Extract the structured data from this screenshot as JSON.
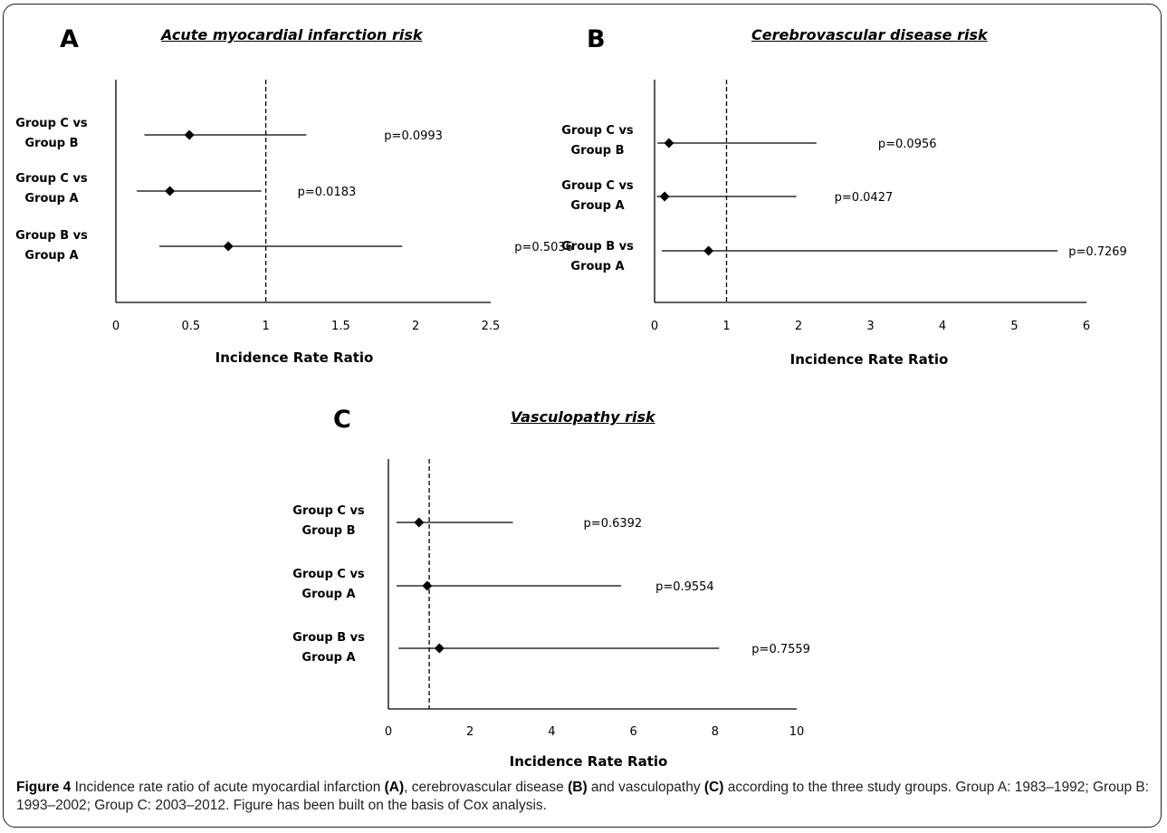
{
  "chart_data": [
    {
      "type": "forest",
      "panel_label": "A",
      "title": "Acute myocardial infarction risk",
      "xlabel": "Incidence Rate Ratio",
      "xlim": [
        0,
        2.5
      ],
      "xticks": [
        "0",
        "0.5",
        "1",
        "1.5",
        "2",
        "2.5"
      ],
      "reference_line": 1,
      "rows": [
        {
          "label_line1": "Group C vs",
          "label_line2": "Group B",
          "estimate": 0.49,
          "lower": 0.19,
          "upper": 1.27,
          "p_label": "p=0.0993"
        },
        {
          "label_line1": "Group C vs",
          "label_line2": "Group A",
          "estimate": 0.36,
          "lower": 0.14,
          "upper": 0.97,
          "p_label": "p=0.0183"
        },
        {
          "label_line1": "Group B vs",
          "label_line2": "Group A",
          "estimate": 0.75,
          "lower": 0.29,
          "upper": 1.91,
          "p_label": "p=0.5036"
        }
      ]
    },
    {
      "type": "forest",
      "panel_label": "B",
      "title": "Cerebrovascular disease risk",
      "xlabel": "Incidence Rate Ratio",
      "xlim": [
        0,
        6
      ],
      "xticks": [
        "0",
        "1",
        "2",
        "3",
        "4",
        "5",
        "6"
      ],
      "reference_line": 1,
      "rows": [
        {
          "label_line1": "Group C vs",
          "label_line2": "Group B",
          "estimate": 0.2,
          "lower": 0.04,
          "upper": 2.25,
          "p_label": "p=0.0956"
        },
        {
          "label_line1": "Group C vs",
          "label_line2": "Group A",
          "estimate": 0.14,
          "lower": 0.03,
          "upper": 1.97,
          "p_label": "p=0.0427"
        },
        {
          "label_line1": "Group B vs",
          "label_line2": "Group A",
          "estimate": 0.75,
          "lower": 0.1,
          "upper": 5.6,
          "p_label": "p=0.7269"
        }
      ]
    },
    {
      "type": "forest",
      "panel_label": "C",
      "title": "Vasculopathy risk",
      "xlabel": "Incidence Rate Ratio",
      "xlim": [
        0,
        10
      ],
      "xticks": [
        "0",
        "2",
        "4",
        "6",
        "8",
        "10"
      ],
      "reference_line": 1,
      "rows": [
        {
          "label_line1": "Group C vs",
          "label_line2": "Group B",
          "estimate": 0.75,
          "lower": 0.2,
          "upper": 3.05,
          "p_label": "p=0.6392"
        },
        {
          "label_line1": "Group C vs",
          "label_line2": "Group A",
          "estimate": 0.95,
          "lower": 0.2,
          "upper": 5.7,
          "p_label": "p=0.9554"
        },
        {
          "label_line1": "Group B vs",
          "label_line2": "Group A",
          "estimate": 1.25,
          "lower": 0.25,
          "upper": 8.1,
          "p_label": "p=0.7559"
        }
      ]
    }
  ],
  "caption": {
    "figure_label": "Figure 4",
    "text_1": " Incidence rate ratio of acute myocardial infarction ",
    "ref_a": "(A)",
    "text_2": ", cerebrovascular disease ",
    "ref_b": "(B)",
    "text_3": " and vasculopathy ",
    "ref_c": "(C)",
    "text_4": " according to the three study groups. Group A: 1983–1992; Group B: 1993–2002; Group C: 2003–2012. Figure has been built on the basis of Cox analysis."
  },
  "colors": {
    "ink": "#000000",
    "caption_text": "#222222",
    "frame": "#222222"
  }
}
